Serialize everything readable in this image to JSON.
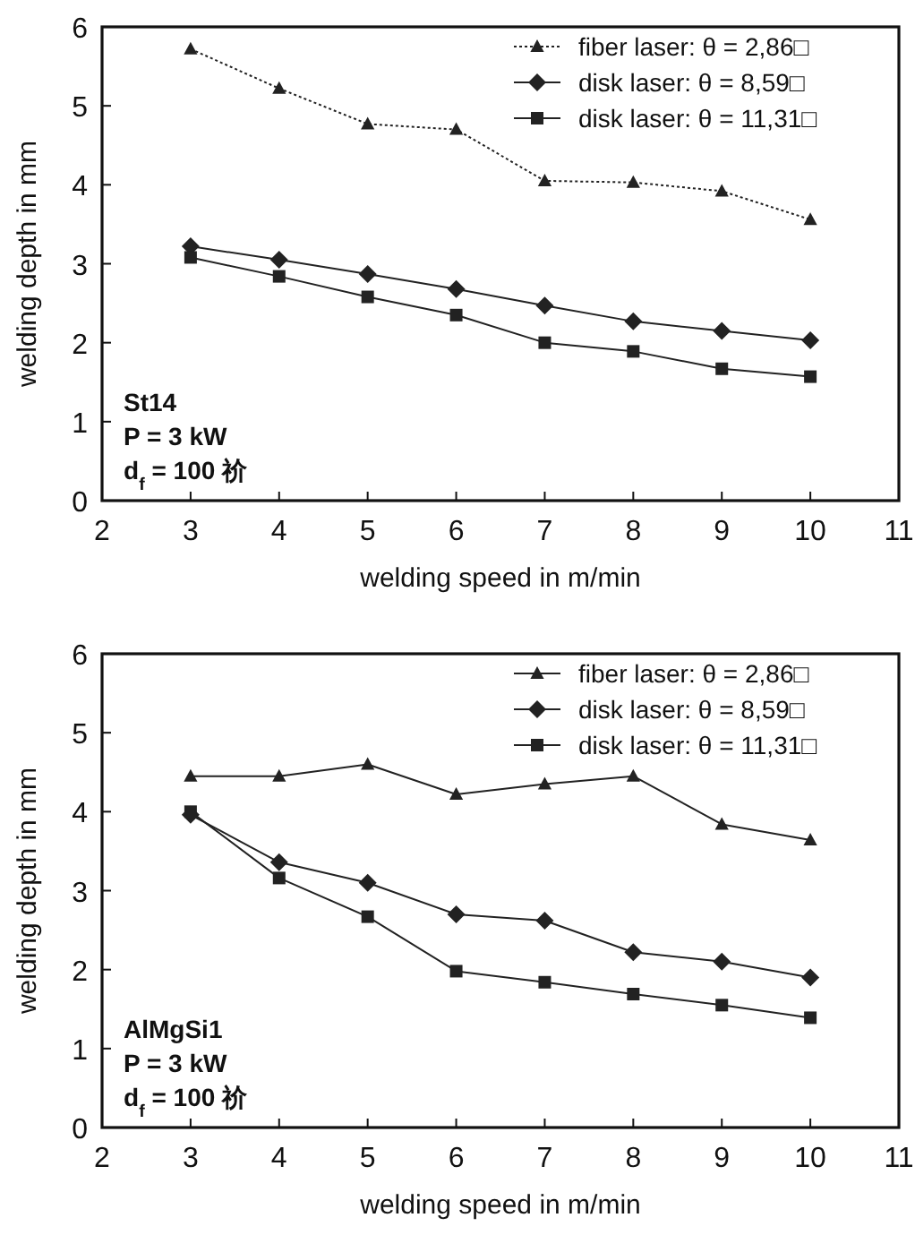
{
  "chart_data": [
    {
      "type": "line",
      "x": [
        3,
        4,
        5,
        6,
        7,
        8,
        9,
        10
      ],
      "xlabel": "welding speed in m/min",
      "ylabel": "welding depth in mm",
      "xlim": [
        2,
        11
      ],
      "xticks": [
        2,
        3,
        4,
        5,
        6,
        7,
        8,
        9,
        10,
        11
      ],
      "ylim": [
        0,
        6
      ],
      "yticks": [
        0,
        1,
        2,
        3,
        4,
        5,
        6
      ],
      "legend": "top right",
      "grid": false,
      "annotations": [
        "St14",
        "P = 3 kW",
        "d$_{f}$ = 100 祄"
      ],
      "series": [
        {
          "name": "fiber laser: θ = 2,86□",
          "color": "#222222",
          "marker": "triangle",
          "line_style": "dotted",
          "values": [
            5.72,
            5.22,
            4.77,
            4.7,
            4.05,
            4.03,
            3.92,
            3.56
          ]
        },
        {
          "name": "disk laser: θ = 8,59□",
          "color": "#222222",
          "marker": "diamond",
          "line_style": "solid",
          "values": [
            3.22,
            3.05,
            2.87,
            2.68,
            2.47,
            2.27,
            2.15,
            2.03
          ]
        },
        {
          "name": "disk laser: θ = 11,31□",
          "color": "#222222",
          "marker": "square",
          "line_style": "solid",
          "values": [
            3.08,
            2.84,
            2.58,
            2.35,
            2.0,
            1.89,
            1.67,
            1.57
          ]
        }
      ]
    },
    {
      "type": "line",
      "x": [
        3,
        4,
        5,
        6,
        7,
        8,
        9,
        10
      ],
      "xlabel": "welding speed in m/min",
      "ylabel": "welding depth in mm",
      "xlim": [
        2,
        11
      ],
      "xticks": [
        2,
        3,
        4,
        5,
        6,
        7,
        8,
        9,
        10,
        11
      ],
      "ylim": [
        0,
        6
      ],
      "yticks": [
        0,
        1,
        2,
        3,
        4,
        5,
        6
      ],
      "legend": "top right",
      "grid": false,
      "annotations": [
        "AlMgSi1",
        "P = 3 kW",
        "d$_{f}$ = 100 祄"
      ],
      "series": [
        {
          "name": "fiber laser: θ = 2,86□",
          "color": "#222222",
          "marker": "triangle",
          "line_style": "solid",
          "values": [
            4.45,
            4.45,
            4.6,
            4.22,
            4.35,
            4.45,
            3.84,
            3.64
          ]
        },
        {
          "name": "disk laser: θ = 8,59□",
          "color": "#222222",
          "marker": "diamond",
          "line_style": "solid",
          "values": [
            3.96,
            3.36,
            3.1,
            2.7,
            2.62,
            2.22,
            2.1,
            1.9
          ]
        },
        {
          "name": "disk laser: θ = 11,31□",
          "color": "#222222",
          "marker": "square",
          "line_style": "solid",
          "values": [
            4.0,
            3.16,
            2.67,
            1.98,
            1.84,
            1.69,
            1.55,
            1.39
          ]
        }
      ]
    }
  ]
}
